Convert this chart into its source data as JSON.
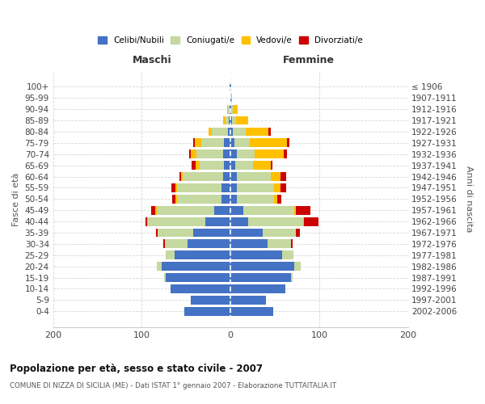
{
  "age_groups": [
    "100+",
    "95-99",
    "90-94",
    "85-89",
    "80-84",
    "75-79",
    "70-74",
    "65-69",
    "60-64",
    "55-59",
    "50-54",
    "45-49",
    "40-44",
    "35-39",
    "30-34",
    "25-29",
    "20-24",
    "15-19",
    "10-14",
    "5-9",
    "0-4"
  ],
  "birth_years": [
    "≤ 1906",
    "1907-1911",
    "1912-1916",
    "1917-1921",
    "1922-1926",
    "1927-1931",
    "1932-1936",
    "1937-1941",
    "1942-1946",
    "1947-1951",
    "1952-1956",
    "1957-1961",
    "1962-1966",
    "1967-1971",
    "1972-1976",
    "1977-1981",
    "1982-1986",
    "1987-1991",
    "1992-1996",
    "1997-2001",
    "2002-2006"
  ],
  "male_celibi": [
    1,
    0,
    1,
    2,
    3,
    7,
    8,
    7,
    8,
    10,
    10,
    18,
    28,
    42,
    48,
    63,
    78,
    73,
    68,
    45,
    52
  ],
  "male_coniugati": [
    0,
    0,
    2,
    4,
    18,
    26,
    30,
    28,
    46,
    50,
    50,
    65,
    65,
    40,
    26,
    10,
    5,
    2,
    0,
    0,
    0
  ],
  "male_vedovi": [
    0,
    0,
    1,
    2,
    4,
    7,
    7,
    4,
    2,
    2,
    2,
    2,
    1,
    0,
    0,
    0,
    0,
    0,
    0,
    0,
    0
  ],
  "male_divorziati": [
    0,
    0,
    0,
    0,
    0,
    2,
    2,
    5,
    2,
    5,
    4,
    4,
    2,
    2,
    2,
    0,
    0,
    0,
    0,
    0,
    0
  ],
  "female_nubili": [
    1,
    1,
    1,
    2,
    3,
    4,
    7,
    5,
    7,
    7,
    7,
    14,
    20,
    36,
    42,
    58,
    72,
    68,
    62,
    40,
    48
  ],
  "female_coniugate": [
    0,
    0,
    2,
    4,
    14,
    18,
    20,
    20,
    38,
    42,
    42,
    58,
    62,
    38,
    26,
    13,
    7,
    2,
    0,
    0,
    0
  ],
  "female_vedove": [
    0,
    1,
    5,
    14,
    26,
    42,
    33,
    20,
    11,
    7,
    4,
    2,
    1,
    0,
    0,
    0,
    0,
    0,
    0,
    0,
    0
  ],
  "female_divorziate": [
    0,
    0,
    0,
    0,
    2,
    2,
    4,
    2,
    7,
    7,
    4,
    16,
    16,
    4,
    2,
    0,
    0,
    0,
    0,
    0,
    0
  ],
  "colors": {
    "celibi": "#4472c4",
    "coniugati": "#c5d9a0",
    "vedovi": "#ffc000",
    "divorziati": "#cc0000"
  },
  "xlim": [
    -200,
    200
  ],
  "xlabel_left": "Maschi",
  "xlabel_right": "Femmine",
  "ylabel_left": "Fasce di età",
  "ylabel_right": "Anni di nascita",
  "title": "Popolazione per età, sesso e stato civile - 2007",
  "subtitle": "COMUNE DI NIZZA DI SICILIA (ME) - Dati ISTAT 1° gennaio 2007 - Elaborazione TUTTAITALIA.IT",
  "legend_labels": [
    "Celibi/Nubili",
    "Coniugati/e",
    "Vedovi/e",
    "Divorziati/e"
  ],
  "bg_color": "#ffffff",
  "grid_color": "#cccccc"
}
